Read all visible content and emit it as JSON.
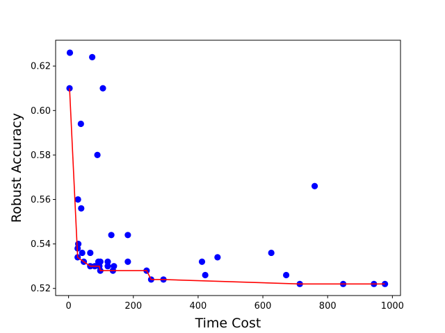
{
  "chart_data": {
    "type": "scatter",
    "title": "",
    "xlabel": "Time Cost",
    "ylabel": "Robust Accuracy",
    "xlim": [
      -40,
      1025
    ],
    "ylim": [
      0.5168,
      0.6316
    ],
    "xticks": [
      0,
      200,
      400,
      600,
      800,
      1000
    ],
    "xtick_labels": [
      "0",
      "200",
      "400",
      "600",
      "800",
      "1000"
    ],
    "yticks": [
      0.52,
      0.54,
      0.56,
      0.58,
      0.6,
      0.62
    ],
    "ytick_labels": [
      "0.52",
      "0.54",
      "0.56",
      "0.58",
      "0.60",
      "0.62"
    ],
    "grid": false,
    "legend": "none",
    "series": [
      {
        "type": "scatter",
        "color": "#0000ff",
        "points": [
          [
            4,
            0.626
          ],
          [
            3,
            0.61
          ],
          [
            73,
            0.624
          ],
          [
            106,
            0.61
          ],
          [
            38,
            0.594
          ],
          [
            89,
            0.58
          ],
          [
            29,
            0.56
          ],
          [
            39,
            0.556
          ],
          [
            30,
            0.54
          ],
          [
            28,
            0.538
          ],
          [
            42,
            0.536
          ],
          [
            67,
            0.536
          ],
          [
            28,
            0.534
          ],
          [
            47,
            0.532
          ],
          [
            67,
            0.53
          ],
          [
            81,
            0.53
          ],
          [
            92,
            0.532
          ],
          [
            98,
            0.532
          ],
          [
            95,
            0.53
          ],
          [
            98,
            0.528
          ],
          [
            121,
            0.532
          ],
          [
            121,
            0.53
          ],
          [
            140,
            0.53
          ],
          [
            132,
            0.544
          ],
          [
            137,
            0.528
          ],
          [
            183,
            0.544
          ],
          [
            183,
            0.532
          ],
          [
            241,
            0.528
          ],
          [
            255,
            0.524
          ],
          [
            293,
            0.524
          ],
          [
            412,
            0.532
          ],
          [
            422,
            0.526
          ],
          [
            460,
            0.534
          ],
          [
            626,
            0.536
          ],
          [
            672,
            0.526
          ],
          [
            714,
            0.522
          ],
          [
            760,
            0.566
          ],
          [
            848,
            0.522
          ],
          [
            943,
            0.522
          ],
          [
            977,
            0.522
          ]
        ]
      },
      {
        "type": "line",
        "color": "#ff0000",
        "points": [
          [
            3,
            0.61
          ],
          [
            28,
            0.534
          ],
          [
            47,
            0.532
          ],
          [
            67,
            0.53
          ],
          [
            95,
            0.53
          ],
          [
            98,
            0.528
          ],
          [
            241,
            0.528
          ],
          [
            255,
            0.524
          ],
          [
            293,
            0.524
          ],
          [
            714,
            0.522
          ],
          [
            977,
            0.522
          ]
        ]
      }
    ]
  }
}
